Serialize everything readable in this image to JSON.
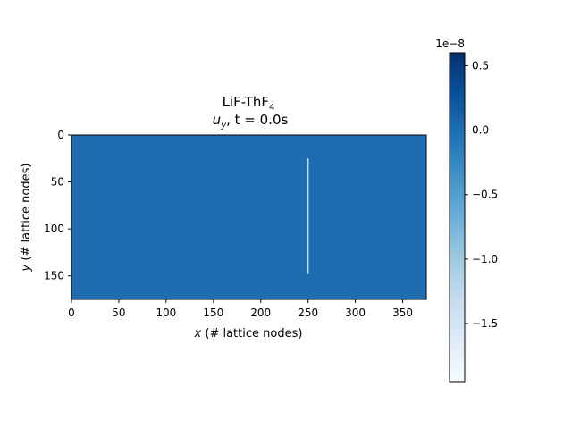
{
  "chart_data": {
    "type": "heatmap",
    "title": {
      "line1_main": "LiF-ThF",
      "line1_sub": "4",
      "line2_u": "u",
      "line2_u_sub": "y",
      "line2_t": ", t = 0.0s"
    },
    "xlabel": {
      "var": "x",
      "rest": " (# lattice nodes)"
    },
    "ylabel": {
      "var": "y",
      "rest": " (# lattice nodes)"
    },
    "xlim": [
      0,
      375
    ],
    "ylim": [
      175,
      0
    ],
    "x_ticks": [
      0,
      50,
      100,
      150,
      200,
      250,
      300,
      350
    ],
    "y_ticks": [
      0,
      50,
      100,
      150
    ],
    "field": {
      "background_value": 0.0,
      "line": {
        "x": 250,
        "y_start": 25,
        "y_end": 148,
        "value": -1e-08
      }
    },
    "colorbar": {
      "multiplier_label": "1e−8",
      "vmin": -1.95,
      "vmax": 0.6,
      "ticks": [
        0.5,
        0.0,
        -0.5,
        -1.0,
        -1.5
      ],
      "tick_labels": [
        "0.5",
        "0.0",
        "−0.5",
        "−1.0",
        "−1.5"
      ],
      "colormap": "Blues_r"
    },
    "colors": {
      "background_fill": "#1f6db1",
      "line_color": "#c7dcef",
      "colormap_stops": [
        "#f7fbff",
        "#deebf7",
        "#c6dbef",
        "#9ecae1",
        "#6baed6",
        "#4292c6",
        "#2171b5",
        "#08519c",
        "#08306b"
      ]
    }
  }
}
